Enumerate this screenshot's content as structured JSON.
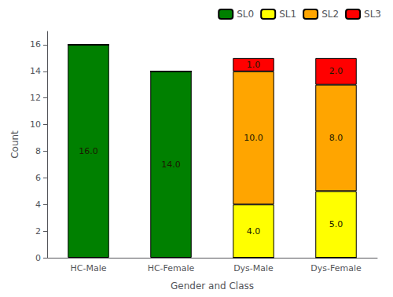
{
  "chart_data": {
    "type": "bar",
    "stacked": true,
    "data_labels": true,
    "xlabel": "Gender and Class",
    "ylabel": "Count",
    "categories": [
      "HC-Male",
      "HC-Female",
      "Dys-Male",
      "Dys-Female"
    ],
    "series": [
      {
        "name": "SL0",
        "color": "#008000",
        "values": [
          16.0,
          14.0,
          0.0,
          0.0
        ],
        "value_labels": [
          "16.0",
          "14.0",
          null,
          null
        ]
      },
      {
        "name": "SL1",
        "color": "#ffff00",
        "values": [
          0.0,
          0.0,
          4.0,
          5.0
        ],
        "value_labels": [
          null,
          null,
          "4.0",
          "5.0"
        ]
      },
      {
        "name": "SL2",
        "color": "#ffa500",
        "values": [
          0.0,
          0.0,
          10.0,
          8.0
        ],
        "value_labels": [
          null,
          null,
          "10.0",
          "8.0"
        ]
      },
      {
        "name": "SL3",
        "color": "#ff0000",
        "values": [
          0.0,
          0.0,
          1.0,
          2.0
        ],
        "value_labels": [
          null,
          null,
          "1.0",
          "2.0"
        ]
      }
    ],
    "ylim": [
      0,
      17
    ],
    "yticks": [
      0,
      2,
      4,
      6,
      8,
      10,
      12,
      14,
      16
    ],
    "grid": false,
    "legend": "upper right"
  }
}
